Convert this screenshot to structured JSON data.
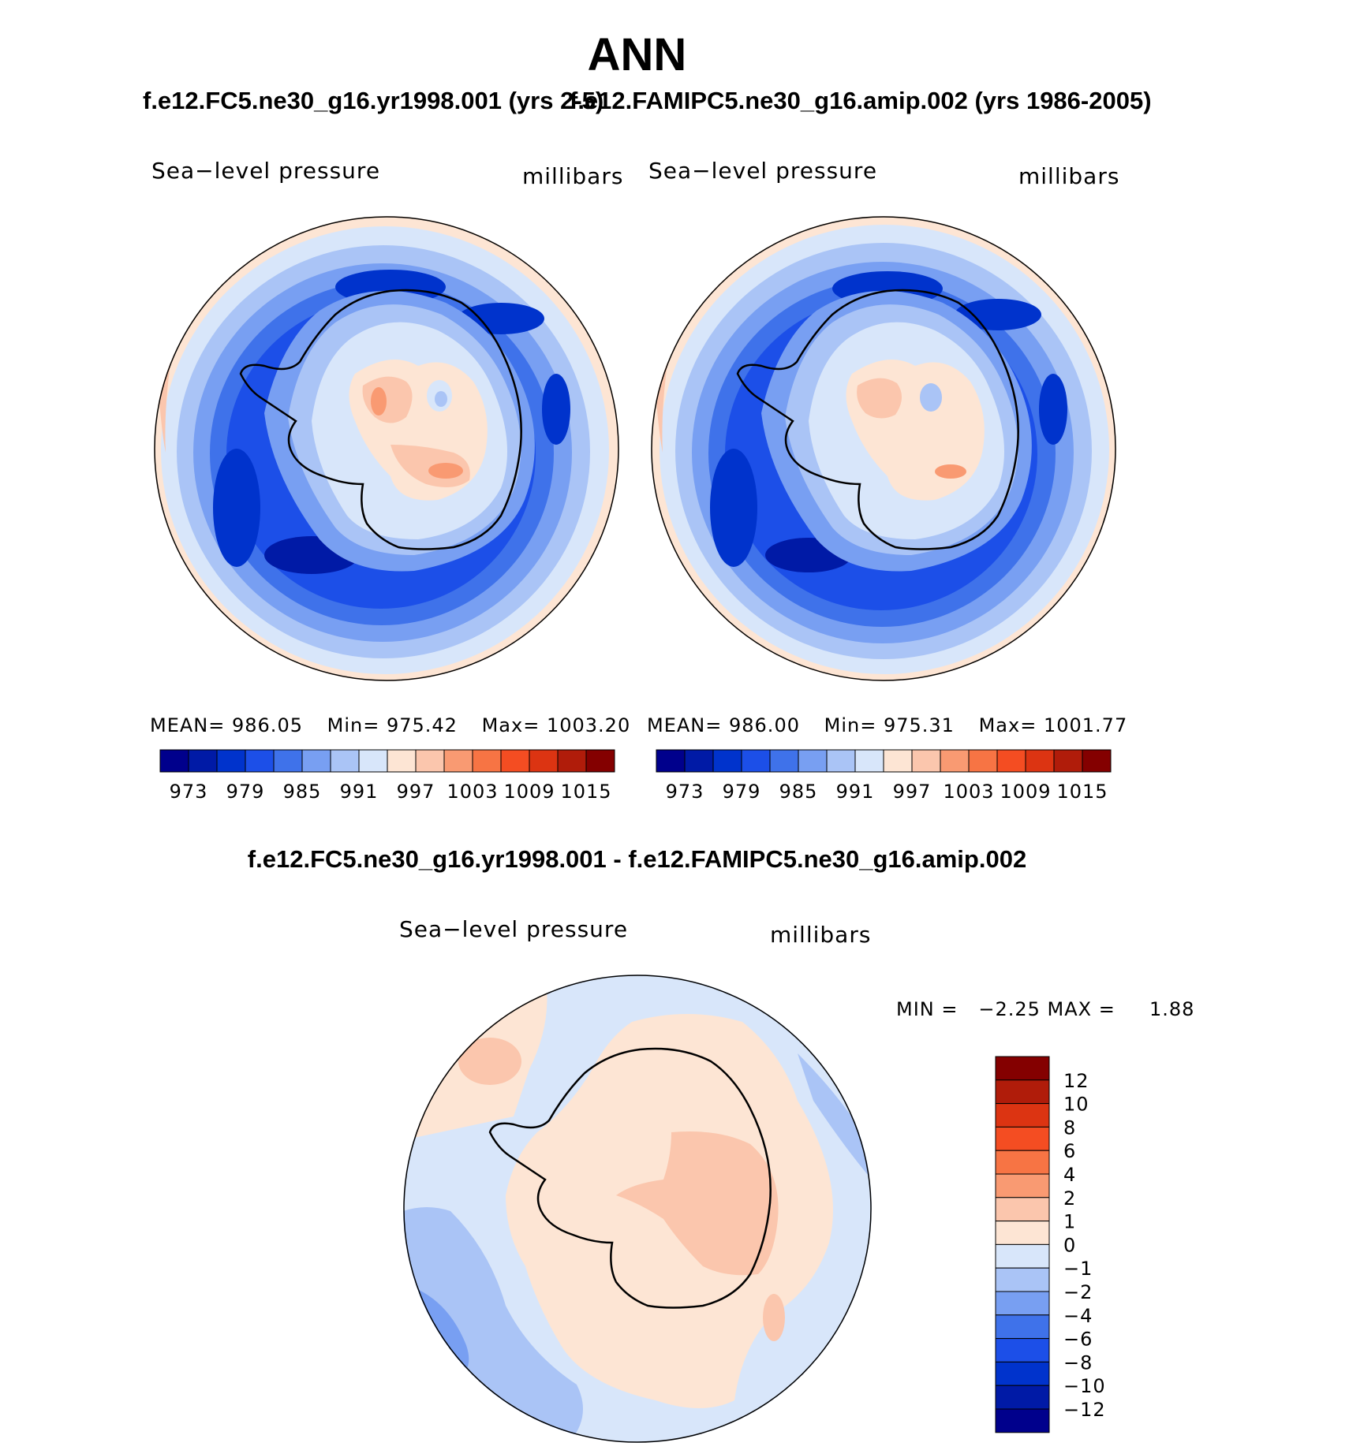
{
  "figure_title": "ANN",
  "panel_top_left": {
    "case_title": "f.e12.FC5.ne30_g16.yr1998.001 (yrs 2-5)",
    "variable": "Sea−level pressure",
    "units": "millibars",
    "stats": {
      "mean_label": "MEAN=",
      "mean": "986.05",
      "min_label": "Min=",
      "min": "975.42",
      "max_label": "Max=",
      "max": "1003.20"
    }
  },
  "panel_top_right": {
    "case_title": "f.e12.FAMIPC5.ne30_g16.amip.002 (yrs 1986-2005)",
    "variable": "Sea−level pressure",
    "units": "millibars",
    "stats": {
      "mean_label": "MEAN=",
      "mean": "986.00",
      "min_label": "Min=",
      "min": "975.31",
      "max_label": "Max=",
      "max": "1001.77"
    }
  },
  "panel_bottom": {
    "case_title": "f.e12.FC5.ne30_g16.yr1998.001 - f.e12.FAMIPC5.ne30_g16.amip.002",
    "variable": "Sea−level pressure",
    "units": "millibars",
    "minmax_text": "MIN =   −2.25 MAX =     1.88"
  },
  "chart_data": [
    {
      "type": "heatmap",
      "projection": "south-polar-stereographic",
      "title": "f.e12.FC5.ne30_g16.yr1998.001 (yrs 2-5)",
      "variable": "Sea−level pressure",
      "units": "millibars",
      "mean": 986.05,
      "min": 975.42,
      "max": 1003.2,
      "levels": [
        973,
        976,
        979,
        982,
        985,
        988,
        991,
        994,
        997,
        1000,
        1003,
        1006,
        1009,
        1012,
        1015
      ],
      "tick_labels": [
        "973",
        "979",
        "985",
        "991",
        "997",
        "1003",
        "1009",
        "1015"
      ],
      "colors": [
        "#00008c",
        "#001aa6",
        "#0033cc",
        "#1c4fe8",
        "#3f72ea",
        "#789ff2",
        "#aac4f6",
        "#d8e6fa",
        "#fde5d4",
        "#fbc6ad",
        "#f99a72",
        "#f77444",
        "#f44d22",
        "#dc3412",
        "#b01c0a",
        "#840000"
      ]
    },
    {
      "type": "heatmap",
      "projection": "south-polar-stereographic",
      "title": "f.e12.FAMIPC5.ne30_g16.amip.002 (yrs 1986-2005)",
      "variable": "Sea−level pressure",
      "units": "millibars",
      "mean": 986.0,
      "min": 975.31,
      "max": 1001.77,
      "levels": [
        973,
        976,
        979,
        982,
        985,
        988,
        991,
        994,
        997,
        1000,
        1003,
        1006,
        1009,
        1012,
        1015
      ],
      "tick_labels": [
        "973",
        "979",
        "985",
        "991",
        "997",
        "1003",
        "1009",
        "1015"
      ],
      "colors": [
        "#00008c",
        "#001aa6",
        "#0033cc",
        "#1c4fe8",
        "#3f72ea",
        "#789ff2",
        "#aac4f6",
        "#d8e6fa",
        "#fde5d4",
        "#fbc6ad",
        "#f99a72",
        "#f77444",
        "#f44d22",
        "#dc3412",
        "#b01c0a",
        "#840000"
      ]
    },
    {
      "type": "heatmap",
      "projection": "south-polar-stereographic",
      "title": "f.e12.FC5.ne30_g16.yr1998.001 - f.e12.FAMIPC5.ne30_g16.amip.002",
      "variable": "Sea−level pressure",
      "units": "millibars",
      "min": -2.25,
      "max": 1.88,
      "levels": [
        -12,
        -10,
        -8,
        -6,
        -4,
        -2,
        -1,
        0,
        1,
        2,
        4,
        6,
        8,
        10,
        12
      ],
      "tick_labels": [
        "12",
        "10",
        "8",
        "6",
        "4",
        "2",
        "1",
        "0",
        "−1",
        "−2",
        "−4",
        "−6",
        "−8",
        "−10",
        "−12"
      ],
      "colors_top_to_bottom": [
        "#840000",
        "#b01c0a",
        "#dc3412",
        "#f44d22",
        "#f77444",
        "#f99a72",
        "#fbc6ad",
        "#fde5d4",
        "#d8e6fa",
        "#aac4f6",
        "#789ff2",
        "#3f72ea",
        "#1c4fe8",
        "#0033cc",
        "#001aa6",
        "#00008c"
      ]
    }
  ]
}
